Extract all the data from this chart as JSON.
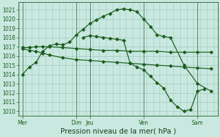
{
  "title": "Pression niveau de la mer( hPa )",
  "background_color": "#c8e8e0",
  "grid_color": "#a0c8c0",
  "line_color": "#1a5c1a",
  "ylim": [
    1009.5,
    1021.8
  ],
  "yticks": [
    1010,
    1011,
    1012,
    1013,
    1014,
    1015,
    1016,
    1017,
    1018,
    1019,
    1020,
    1021
  ],
  "day_labels": [
    "Mer",
    "Dim",
    "Jeu",
    "Ven",
    "Sam"
  ],
  "day_x": [
    0,
    4,
    5,
    9,
    13
  ],
  "xlim": [
    -0.3,
    14.5
  ],
  "s1x": [
    0,
    0.5,
    1,
    1.5,
    2,
    2.5,
    3,
    3.5,
    4,
    4.5,
    5,
    5.5,
    6,
    6.5,
    7,
    7.5,
    8,
    8.5,
    9,
    9.5,
    10,
    10.5,
    11,
    12,
    13,
    14
  ],
  "s1y": [
    1014.0,
    1014.8,
    1015.3,
    1016.5,
    1017.1,
    1017.3,
    1017.2,
    1017.5,
    1018.3,
    1018.9,
    1019.5,
    1019.9,
    1020.3,
    1020.6,
    1021.0,
    1021.1,
    1021.0,
    1020.8,
    1020.0,
    1019.2,
    1018.3,
    1018.1,
    1018.0,
    1015.0,
    1013.0,
    1012.2
  ],
  "s2x": [
    0,
    0.5,
    1,
    1.5,
    2,
    3,
    4,
    5,
    6,
    7,
    8,
    9,
    10,
    11,
    12,
    13,
    14
  ],
  "s2y": [
    1016.9,
    1016.9,
    1017.0,
    1017.0,
    1017.0,
    1016.9,
    1016.8,
    1016.7,
    1016.6,
    1016.6,
    1016.5,
    1016.5,
    1016.5,
    1016.4,
    1016.4,
    1016.4,
    1016.4
  ],
  "s3x": [
    0,
    0.5,
    1,
    1.5,
    2,
    3,
    4,
    5,
    6,
    7,
    8,
    9,
    10,
    11,
    12,
    13,
    14
  ],
  "s3y": [
    1016.8,
    1016.6,
    1016.5,
    1016.3,
    1016.1,
    1015.8,
    1015.6,
    1015.5,
    1015.4,
    1015.3,
    1015.2,
    1015.1,
    1015.0,
    1014.9,
    1014.8,
    1014.7,
    1014.6
  ],
  "s4x": [
    4.5,
    5,
    5.5,
    6,
    6.5,
    7,
    7.5,
    8,
    8.5,
    9,
    9.5,
    10,
    10.5,
    11,
    11.5,
    12,
    12.5,
    13,
    13.5
  ],
  "s4y": [
    1018.0,
    1018.2,
    1018.1,
    1018.0,
    1017.9,
    1017.8,
    1017.7,
    1015.2,
    1014.8,
    1014.5,
    1013.8,
    1013.1,
    1012.5,
    1011.2,
    1010.5,
    1010.0,
    1010.2,
    1012.2,
    1012.4
  ],
  "marker_size": 2.5,
  "lw": 0.9,
  "tick_fontsize": 5.5,
  "xlabel_fontsize": 7.5
}
